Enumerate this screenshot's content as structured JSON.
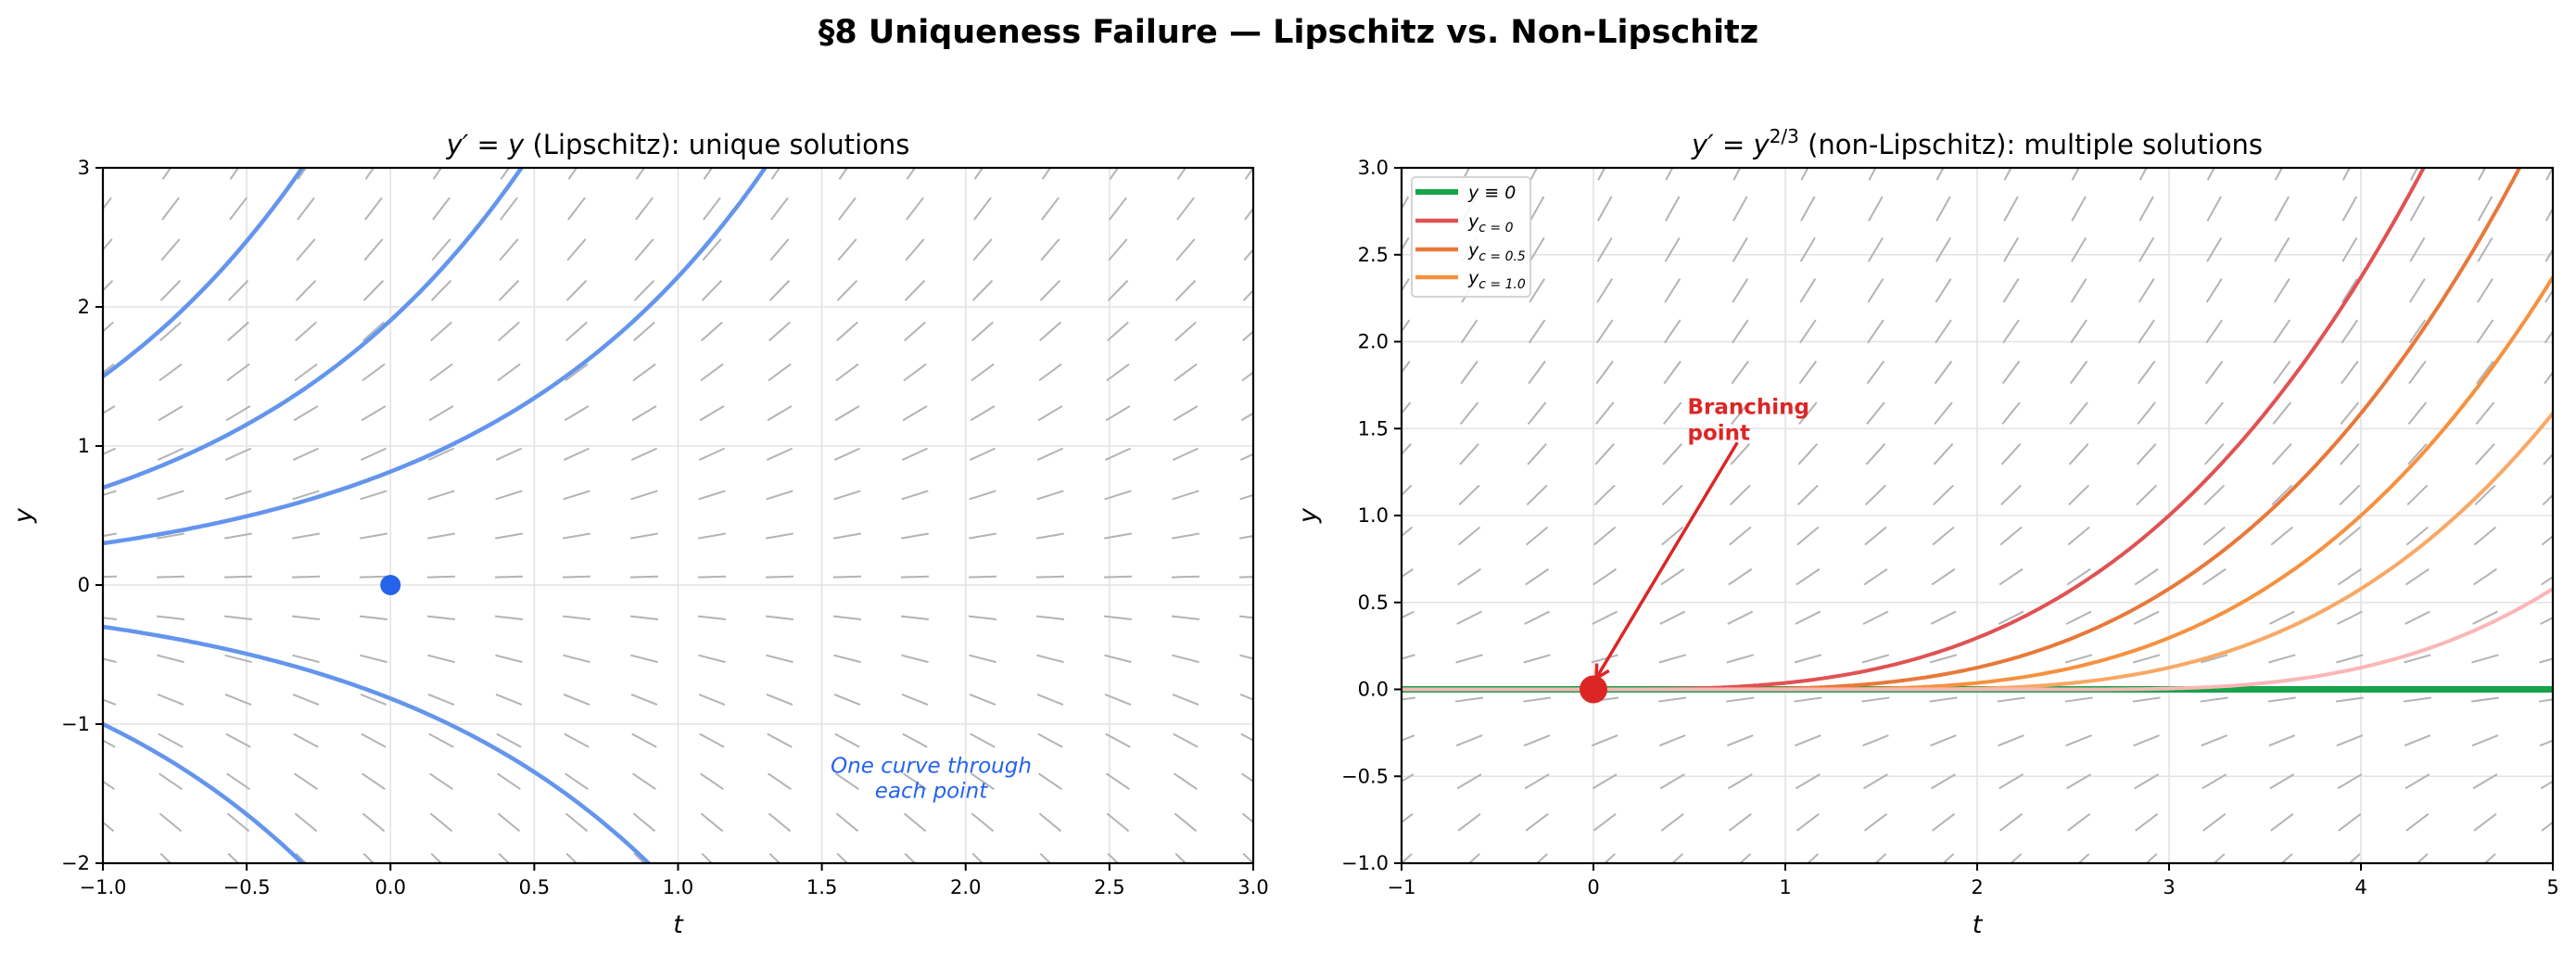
{
  "figure": {
    "suptitle": "§8  Uniqueness Failure — Lipschitz vs. Non-Lipschitz"
  },
  "chart_data": [
    {
      "type": "line",
      "title": "y′ = y (Lipschitz): unique solutions",
      "title_math": "y' = y",
      "title_rest": " (Lipschitz): unique solutions",
      "xlabel": "t",
      "ylabel": "y",
      "xlim": [
        -1.0,
        3.0
      ],
      "ylim": [
        -2,
        3
      ],
      "xticks": [
        -1.0,
        -0.5,
        0.0,
        0.5,
        1.0,
        1.5,
        2.0,
        2.5,
        3.0
      ],
      "xtick_labels": [
        "−1.0",
        "−0.5",
        "0.0",
        "0.5",
        "1.0",
        "1.5",
        "2.0",
        "2.5",
        "3.0"
      ],
      "yticks": [
        -2,
        -1,
        0,
        1,
        2,
        3
      ],
      "ytick_labels": [
        "−2",
        "−1",
        "0",
        "1",
        "2",
        "3"
      ],
      "grid": true,
      "slope_field": {
        "equation": "y' = y",
        "t_count": 18,
        "y_count": 18,
        "color": "#b3b3b8"
      },
      "series": [
        {
          "name": "y = 1.5·e^(t+1)",
          "y_at_t_minus_1": 1.5,
          "color": "#6495ed"
        },
        {
          "name": "y = 0.7·e^(t+1)",
          "y_at_t_minus_1": 0.7,
          "color": "#6495ed"
        },
        {
          "name": "y = 0.3·e^(t+1)",
          "y_at_t_minus_1": 0.3,
          "color": "#6495ed"
        },
        {
          "name": "y = −0.3·e^(t+1)",
          "y_at_t_minus_1": -0.3,
          "color": "#6495ed"
        },
        {
          "name": "y = −1.0·e^(t+1)",
          "y_at_t_minus_1": -1.0,
          "color": "#6495ed"
        }
      ],
      "points": [
        {
          "t": 0.0,
          "y": 0.0,
          "color": "#2563eb"
        }
      ],
      "annotations": [
        {
          "text_lines": [
            "One curve through",
            "each point"
          ],
          "t": 1.88,
          "y": -1.35,
          "color": "#2563eb",
          "style": "italic"
        }
      ]
    },
    {
      "type": "line",
      "title": "y′ = y^(2/3) (non-Lipschitz): multiple solutions",
      "title_math": "y' = y",
      "title_sup": "2/3",
      "title_rest": " (non-Lipschitz): multiple solutions",
      "xlabel": "t",
      "ylabel": "y",
      "xlim": [
        -1,
        5
      ],
      "ylim": [
        -1.0,
        3.0
      ],
      "xticks": [
        -1,
        0,
        1,
        2,
        3,
        4,
        5
      ],
      "xtick_labels": [
        "−1",
        "0",
        "1",
        "2",
        "3",
        "4",
        "5"
      ],
      "yticks": [
        -1.0,
        -0.5,
        0.0,
        0.5,
        1.0,
        1.5,
        2.0,
        2.5,
        3.0
      ],
      "ytick_labels": [
        "−1.0",
        "−0.5",
        "0.0",
        "0.5",
        "1.0",
        "1.5",
        "2.0",
        "2.5",
        "3.0"
      ],
      "grid": true,
      "slope_field": {
        "equation": "y' = y^(2/3)",
        "t_count": 18,
        "y_count": 18,
        "color": "#b3b3b8"
      },
      "series": [
        {
          "name": "y ≡ 0",
          "label_main": "y ≡ 0",
          "label_sub": "",
          "kind": "zero",
          "color": "#16a34a",
          "width": 7
        },
        {
          "name": "y_{c=0}",
          "label_main": "y",
          "label_sub": "c = 0",
          "kind": "cubic",
          "c": 0.0,
          "color": "#e05252",
          "width": 4
        },
        {
          "name": "y_{c=0.5}",
          "label_main": "y",
          "label_sub": "c = 0.5",
          "kind": "cubic",
          "c": 0.5,
          "color": "#e8783a",
          "width": 4
        },
        {
          "name": "y_{c=1.0}",
          "label_main": "y",
          "label_sub": "c = 1.0",
          "kind": "cubic",
          "c": 1.0,
          "color": "#f5913f",
          "width": 4
        },
        {
          "name": "",
          "kind": "cubic",
          "c": 1.5,
          "color": "#f8a865",
          "width": 4
        },
        {
          "name": "",
          "kind": "cubic",
          "c": 2.5,
          "color": "#fbb6b6",
          "width": 4
        }
      ],
      "legend": {
        "position": "upper left",
        "entries": [
          "y ≡ 0",
          "y_{c=0}",
          "y_{c=0.5}",
          "y_{c=1.0}"
        ]
      },
      "points": [
        {
          "t": 0,
          "y": 0,
          "color": "#dc2626"
        }
      ],
      "annotations": [
        {
          "text_lines": [
            "Branching",
            "point"
          ],
          "t": 0.5,
          "y": 1.5,
          "arrow_from": [
            0.75,
            1.42
          ],
          "arrow_to": [
            0,
            0
          ],
          "color": "#dc2626",
          "style": "bold"
        }
      ]
    }
  ]
}
